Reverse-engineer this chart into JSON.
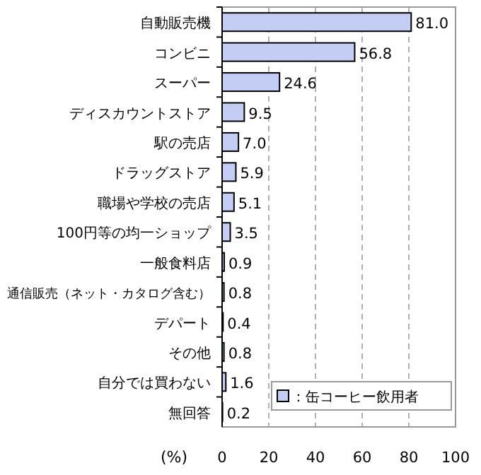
{
  "chart_data": {
    "type": "bar",
    "orientation": "horizontal",
    "xlabel": "(%)",
    "categories": [
      "自動販売機",
      "コンビニ",
      "スーパー",
      "ディスカウントストア",
      "駅の売店",
      "ドラッグストア",
      "職場や学校の売店",
      "100円等の均一ショップ",
      "一般食料店",
      "通信販売（ネット・カタログ含む）",
      "デパート",
      "その他",
      "自分では買わない",
      "無回答"
    ],
    "series": [
      {
        "name": "：缶コーヒー飲用者",
        "color": "#c4cdf4",
        "values": [
          81.0,
          56.8,
          24.6,
          9.5,
          7.0,
          5.9,
          5.1,
          3.5,
          0.9,
          0.8,
          0.4,
          0.8,
          1.6,
          0.2
        ],
        "value_labels": [
          "81.0",
          "56.8",
          "24.6",
          "9.5",
          "7.0",
          "5.9",
          "5.1",
          "3.5",
          "0.9",
          "0.8",
          "0.4",
          "0.8",
          "1.6",
          "0.2"
        ]
      }
    ],
    "xlim": [
      0,
      100
    ],
    "xticks": [
      0,
      20,
      40,
      60,
      80,
      100
    ],
    "grid": "x",
    "legend": "bottom right"
  }
}
